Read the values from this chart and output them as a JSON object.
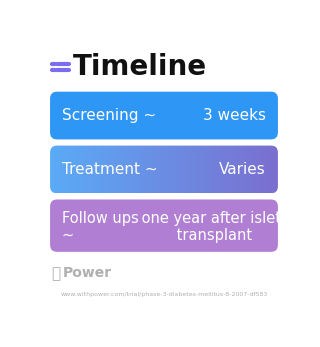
{
  "title": "Timeline",
  "title_fontsize": 20,
  "title_fontweight": "bold",
  "title_color": "#111111",
  "icon_color": "#7c6cf0",
  "background_color": "#ffffff",
  "cards": [
    {
      "label_left": "Screening ~",
      "label_right": "3 weeks",
      "color": "#2e96f5",
      "gradient": false,
      "text_color": "#ffffff",
      "multiline": false
    },
    {
      "label_left": "Treatment ~",
      "label_right": "Varies",
      "color_left": "#5aabf7",
      "color_right": "#7b6fd0",
      "gradient": true,
      "text_color": "#ffffff",
      "multiline": false
    },
    {
      "line1": "Follow ups one year after islet",
      "line2": "~       transplant",
      "color": "#b07fd4",
      "text_color": "#ffffff",
      "multiline": true
    }
  ],
  "footer_text": "Power",
  "footer_url": "www.withpower.com/trial/phase-3-diabetes-mellitus-8-2007-df583",
  "footer_color": "#b0b0b0"
}
